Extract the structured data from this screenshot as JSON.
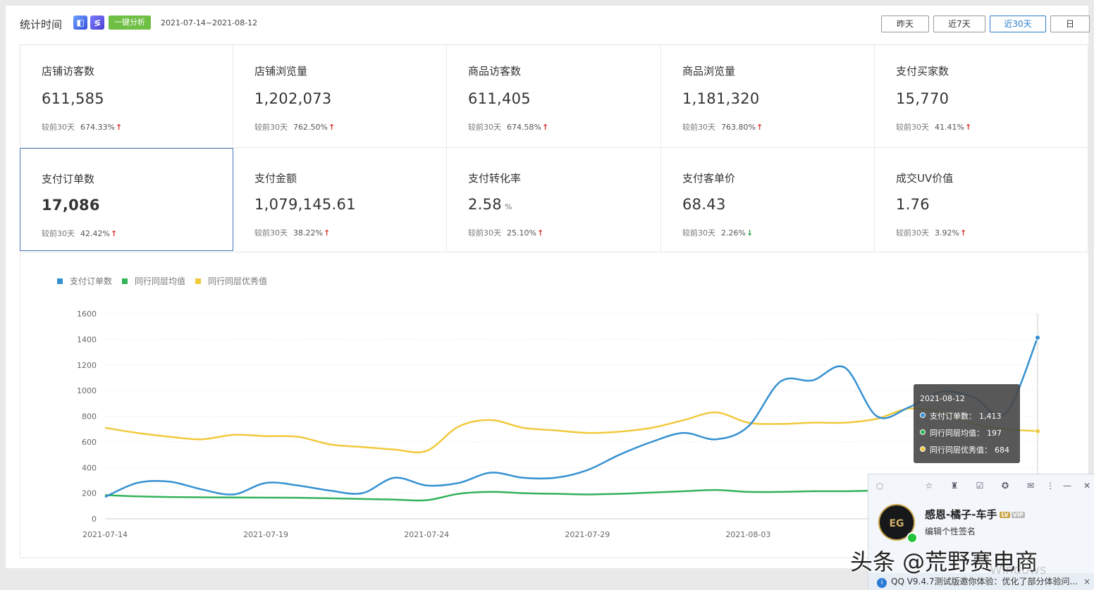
{
  "header": {
    "title": "统计时间",
    "btn_analyze": "一键分析",
    "date_range": "2021-07-14~2021-08-12",
    "range_buttons": [
      "昨天",
      "近7天",
      "近30天",
      "日"
    ],
    "active_range": "近30天"
  },
  "metrics": [
    {
      "label": "店铺访客数",
      "value": "611,585",
      "cmp": "较前30天",
      "pct": "674.33%",
      "dir": "up"
    },
    {
      "label": "店铺浏览量",
      "value": "1,202,073",
      "cmp": "较前30天",
      "pct": "762.50%",
      "dir": "up"
    },
    {
      "label": "商品访客数",
      "value": "611,405",
      "cmp": "较前30天",
      "pct": "674.58%",
      "dir": "up"
    },
    {
      "label": "商品浏览量",
      "value": "1,181,320",
      "cmp": "较前30天",
      "pct": "763.80%",
      "dir": "up"
    },
    {
      "label": "支付买家数",
      "value": "15,770",
      "cmp": "较前30天",
      "pct": "41.41%",
      "dir": "up"
    },
    {
      "label": "支付订单数",
      "value": "17,086",
      "cmp": "较前30天",
      "pct": "42.42%",
      "dir": "up",
      "selected": true
    },
    {
      "label": "支付金额",
      "value": "1,079,145.61",
      "cmp": "较前30天",
      "pct": "38.22%",
      "dir": "up"
    },
    {
      "label": "支付转化率",
      "value": "2.58",
      "unit": "%",
      "cmp": "较前30天",
      "pct": "25.10%",
      "dir": "up"
    },
    {
      "label": "支付客单价",
      "value": "68.43",
      "cmp": "较前30天",
      "pct": "2.26%",
      "dir": "down"
    },
    {
      "label": "成交UV价值",
      "value": "1.76",
      "cmp": "较前30天",
      "pct": "3.92%",
      "dir": "up"
    }
  ],
  "chart_data": {
    "type": "line",
    "legend_position": "top-left",
    "grid": true,
    "ylim": [
      0,
      1600
    ],
    "yticks": [
      0,
      200,
      400,
      600,
      800,
      1000,
      1200,
      1400,
      1600
    ],
    "xtick_labels": [
      "2021-07-14",
      "2021-07-19",
      "2021-07-24",
      "2021-07-29",
      "2021-08-03"
    ],
    "x": [
      "2021-07-14",
      "2021-07-15",
      "2021-07-16",
      "2021-07-17",
      "2021-07-18",
      "2021-07-19",
      "2021-07-20",
      "2021-07-21",
      "2021-07-22",
      "2021-07-23",
      "2021-07-24",
      "2021-07-25",
      "2021-07-26",
      "2021-07-27",
      "2021-07-28",
      "2021-07-29",
      "2021-07-30",
      "2021-07-31",
      "2021-08-01",
      "2021-08-02",
      "2021-08-03",
      "2021-08-04",
      "2021-08-05",
      "2021-08-06",
      "2021-08-07",
      "2021-08-08",
      "2021-08-09",
      "2021-08-10",
      "2021-08-11",
      "2021-08-12"
    ],
    "series": [
      {
        "name": "支付订单数",
        "color": "#3591d2",
        "values": [
          170,
          280,
          290,
          230,
          190,
          280,
          260,
          220,
          200,
          320,
          260,
          280,
          360,
          320,
          320,
          380,
          500,
          600,
          670,
          620,
          720,
          1070,
          1080,
          1180,
          800,
          870,
          990,
          950,
          820,
          1413
        ]
      },
      {
        "name": "同行同层均值",
        "color": "#33b35a",
        "values": [
          185,
          175,
          170,
          168,
          166,
          165,
          164,
          160,
          155,
          150,
          145,
          195,
          210,
          200,
          195,
          190,
          195,
          205,
          215,
          225,
          210,
          210,
          215,
          215,
          220,
          220,
          220,
          215,
          210,
          197
        ]
      },
      {
        "name": "同行同层优秀值",
        "color": "#f0c93c",
        "values": [
          710,
          670,
          640,
          620,
          655,
          645,
          640,
          580,
          560,
          540,
          530,
          720,
          770,
          710,
          690,
          670,
          680,
          710,
          770,
          830,
          750,
          740,
          750,
          750,
          780,
          860,
          830,
          740,
          700,
          684
        ]
      }
    ],
    "tooltip": {
      "date": "2021-08-12",
      "rows": [
        {
          "label": "支付订单数",
          "value": "1,413"
        },
        {
          "label": "同行同层均值",
          "value": "197"
        },
        {
          "label": "同行同层优秀值",
          "value": "684"
        }
      ]
    }
  },
  "qq": {
    "name": "感恩-橘子-车手",
    "signature": "编辑个性签名",
    "notice": "QQ V9.4.7测试版邀你体验：优化了部分体验问...",
    "close": "×"
  },
  "watermark": "头条 @荒野赛电商"
}
